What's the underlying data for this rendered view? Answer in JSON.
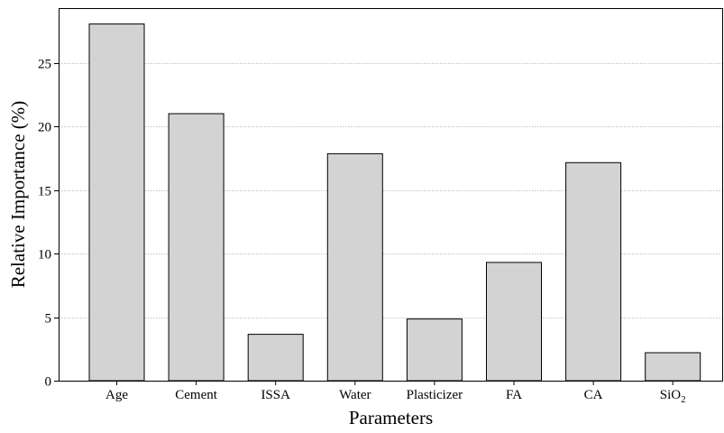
{
  "chart_data": {
    "type": "bar",
    "title": "",
    "xlabel": "Parameters",
    "ylabel": "Relative Importance (%)",
    "categories": [
      "Age",
      "Cement",
      "ISSA",
      "Water",
      "Plasticizer",
      "FA",
      "CA",
      "SiO2"
    ],
    "category_labels": [
      {
        "main": "Age",
        "sub": ""
      },
      {
        "main": "Cement",
        "sub": ""
      },
      {
        "main": "ISSA",
        "sub": ""
      },
      {
        "main": "Water",
        "sub": ""
      },
      {
        "main": "Plasticizer",
        "sub": ""
      },
      {
        "main": "FA",
        "sub": ""
      },
      {
        "main": "CA",
        "sub": ""
      },
      {
        "main": "SiO",
        "sub": "2"
      }
    ],
    "values": [
      28.05,
      21.0,
      3.65,
      17.85,
      4.85,
      9.3,
      17.15,
      2.2
    ],
    "ylim": [
      0,
      29.3
    ],
    "yticks": [
      0,
      5,
      10,
      15,
      20,
      25
    ],
    "grid": "horizontal-dotted",
    "legend": "none",
    "colors": {
      "bar_fill": "#d3d3d3",
      "bar_stroke": "#000000",
      "grid": "#b0b0b0",
      "axis": "#000000"
    }
  }
}
